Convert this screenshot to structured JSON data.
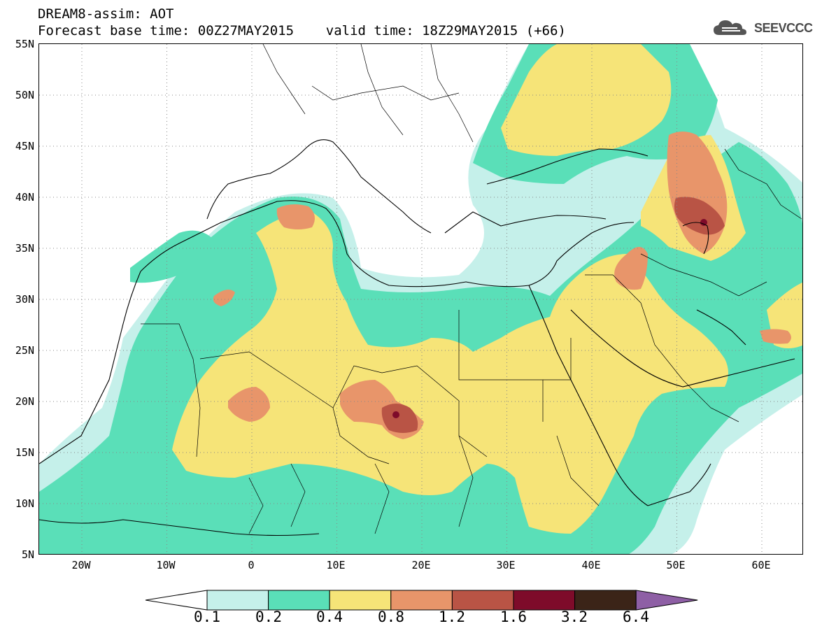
{
  "header": {
    "title_line1": "DREAM8-assim: AOT",
    "title_line2": "Forecast base time: 00Z27MAY2015    valid time: 18Z29MAY2015 (+66)"
  },
  "logo": {
    "icon": "cloud-icon",
    "text": "SEEVCCC"
  },
  "map": {
    "variable": "AOT",
    "lat_labels": [
      "55N",
      "50N",
      "45N",
      "40N",
      "35N",
      "30N",
      "25N",
      "20N",
      "15N",
      "10N",
      "5N"
    ],
    "lon_labels": [
      "20W",
      "10W",
      "0",
      "10E",
      "20E",
      "30E",
      "40E",
      "50E",
      "60E"
    ],
    "gridlines": "dotted"
  },
  "colorbar": {
    "levels": [
      "0.1",
      "0.2",
      "0.4",
      "0.8",
      "1.2",
      "1.6",
      "3.2",
      "6.4"
    ],
    "colors": [
      "#c5f0ea",
      "#5adfb8",
      "#f6e478",
      "#e8956a",
      "#b95445",
      "#7e0b2a",
      "#3b2418",
      "#8e5fa5"
    ],
    "under_color": "#ffffff"
  }
}
